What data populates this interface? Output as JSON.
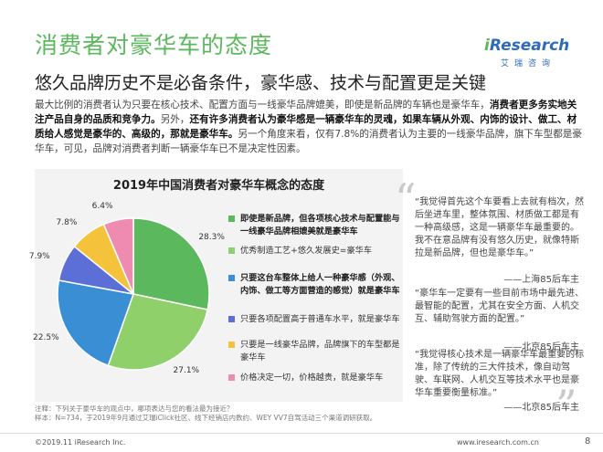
{
  "header": {
    "title": "消费者对豪华车的态度",
    "subtitle": "悠久品牌历史不是必备条件，豪华感、技术与配置更是关键"
  },
  "logo": {
    "main_i": "i",
    "main_rest": "Research",
    "sub": "艾瑞咨询"
  },
  "body": {
    "p1": "最大比例的消费者认为只要在核心技术、配置方面与一线豪华品牌媲美，即使是新品牌的车辆也是豪华车，",
    "p1_bold": "消费者更多务实地关注产品自身的品质和竞争力。",
    "p2": "另外，",
    "p2_bold": "还有许多消费者认为豪华感是一辆豪华车的灵魂，如果车辆从外观、内饰的设计、做工、材质给人感觉是豪华的、高级的，那就是豪华车。",
    "p3": "另一个角度来看，仅有7.8%的消费者认为主要的一线豪华品牌，旗下车型都是豪华车，可见，品牌对消费者判断一辆豪华车已不是决定性因素。"
  },
  "chart_data": {
    "type": "pie",
    "title": "2019年中国消费者对豪华车概念的态度",
    "slices": [
      {
        "label": "即使是新品牌，但各项核心技术与配置能与一线豪华品牌相媲美就是豪华车",
        "value": 28.3,
        "color": "#5bb85d"
      },
      {
        "label": "优秀制造工艺+悠久发展史=豪华车",
        "value": 27.1,
        "color": "#8fd06b"
      },
      {
        "label": "只要这台车整体上给人一种豪华感（外观、内饰、做工等方面营造的感觉）就是豪华车",
        "value": 22.5,
        "color": "#3a8fd4"
      },
      {
        "label": "只要各项配置高于普通车水平，就是豪华车",
        "value": 7.9,
        "color": "#5b6fd6"
      },
      {
        "label": "只要是一线豪华品牌，品牌旗下的车型都是豪华车",
        "value": 7.8,
        "color": "#f5c33b"
      },
      {
        "label": "价格决定一切，价格越贵，就是豪华车",
        "value": 6.4,
        "color": "#ef8bb1"
      }
    ],
    "value_labels": [
      "28.3%",
      "27.1%",
      "22.5%",
      "7.9%",
      "7.8%",
      "6.4%"
    ],
    "bold_legend": [
      true,
      false,
      true,
      false,
      false,
      false
    ]
  },
  "quotes": [
    {
      "text": "“我觉得首先这个车要看上去就有档次，然后坐进车里，整体氛围、材质做工都是有一种高级感，这是一辆豪华车最重要的。我不在意品牌有没有悠久历史，就像特斯拉是新品牌，但也是豪华车。”",
      "author": "——上海85后车主"
    },
    {
      "text": "“豪华车一定要有一些目前市场中最先进、最智能的配置，尤其在安全方面、人机交互、辅助驾驶方面的配置。”",
      "author": "——北京85后车主"
    },
    {
      "text": "“我觉得核心技术是一辆豪华车最重要的标准，除了传统的三大件技术，像自动驾驶、车联网、人机交互等技术水平也是豪华车重要衡量标准。”",
      "author": "——北京85后车主"
    }
  ],
  "note": {
    "line1": "注释：下列关于豪华车的观点中，哪项表达与您的看法最为接近？",
    "line2": "样本：N=734，于2019年9月通过艾瑞iClick社区、线下经销店内数约、WEY VV7自驾活动三个渠道调研获取。"
  },
  "footer": {
    "left": "©2019.11 iResearch Inc.",
    "right": "www.iresearch.com.cn",
    "page": "8"
  },
  "colors": {
    "brand_green": "#5bb85d",
    "brand_blue": "#2e6bb8"
  }
}
